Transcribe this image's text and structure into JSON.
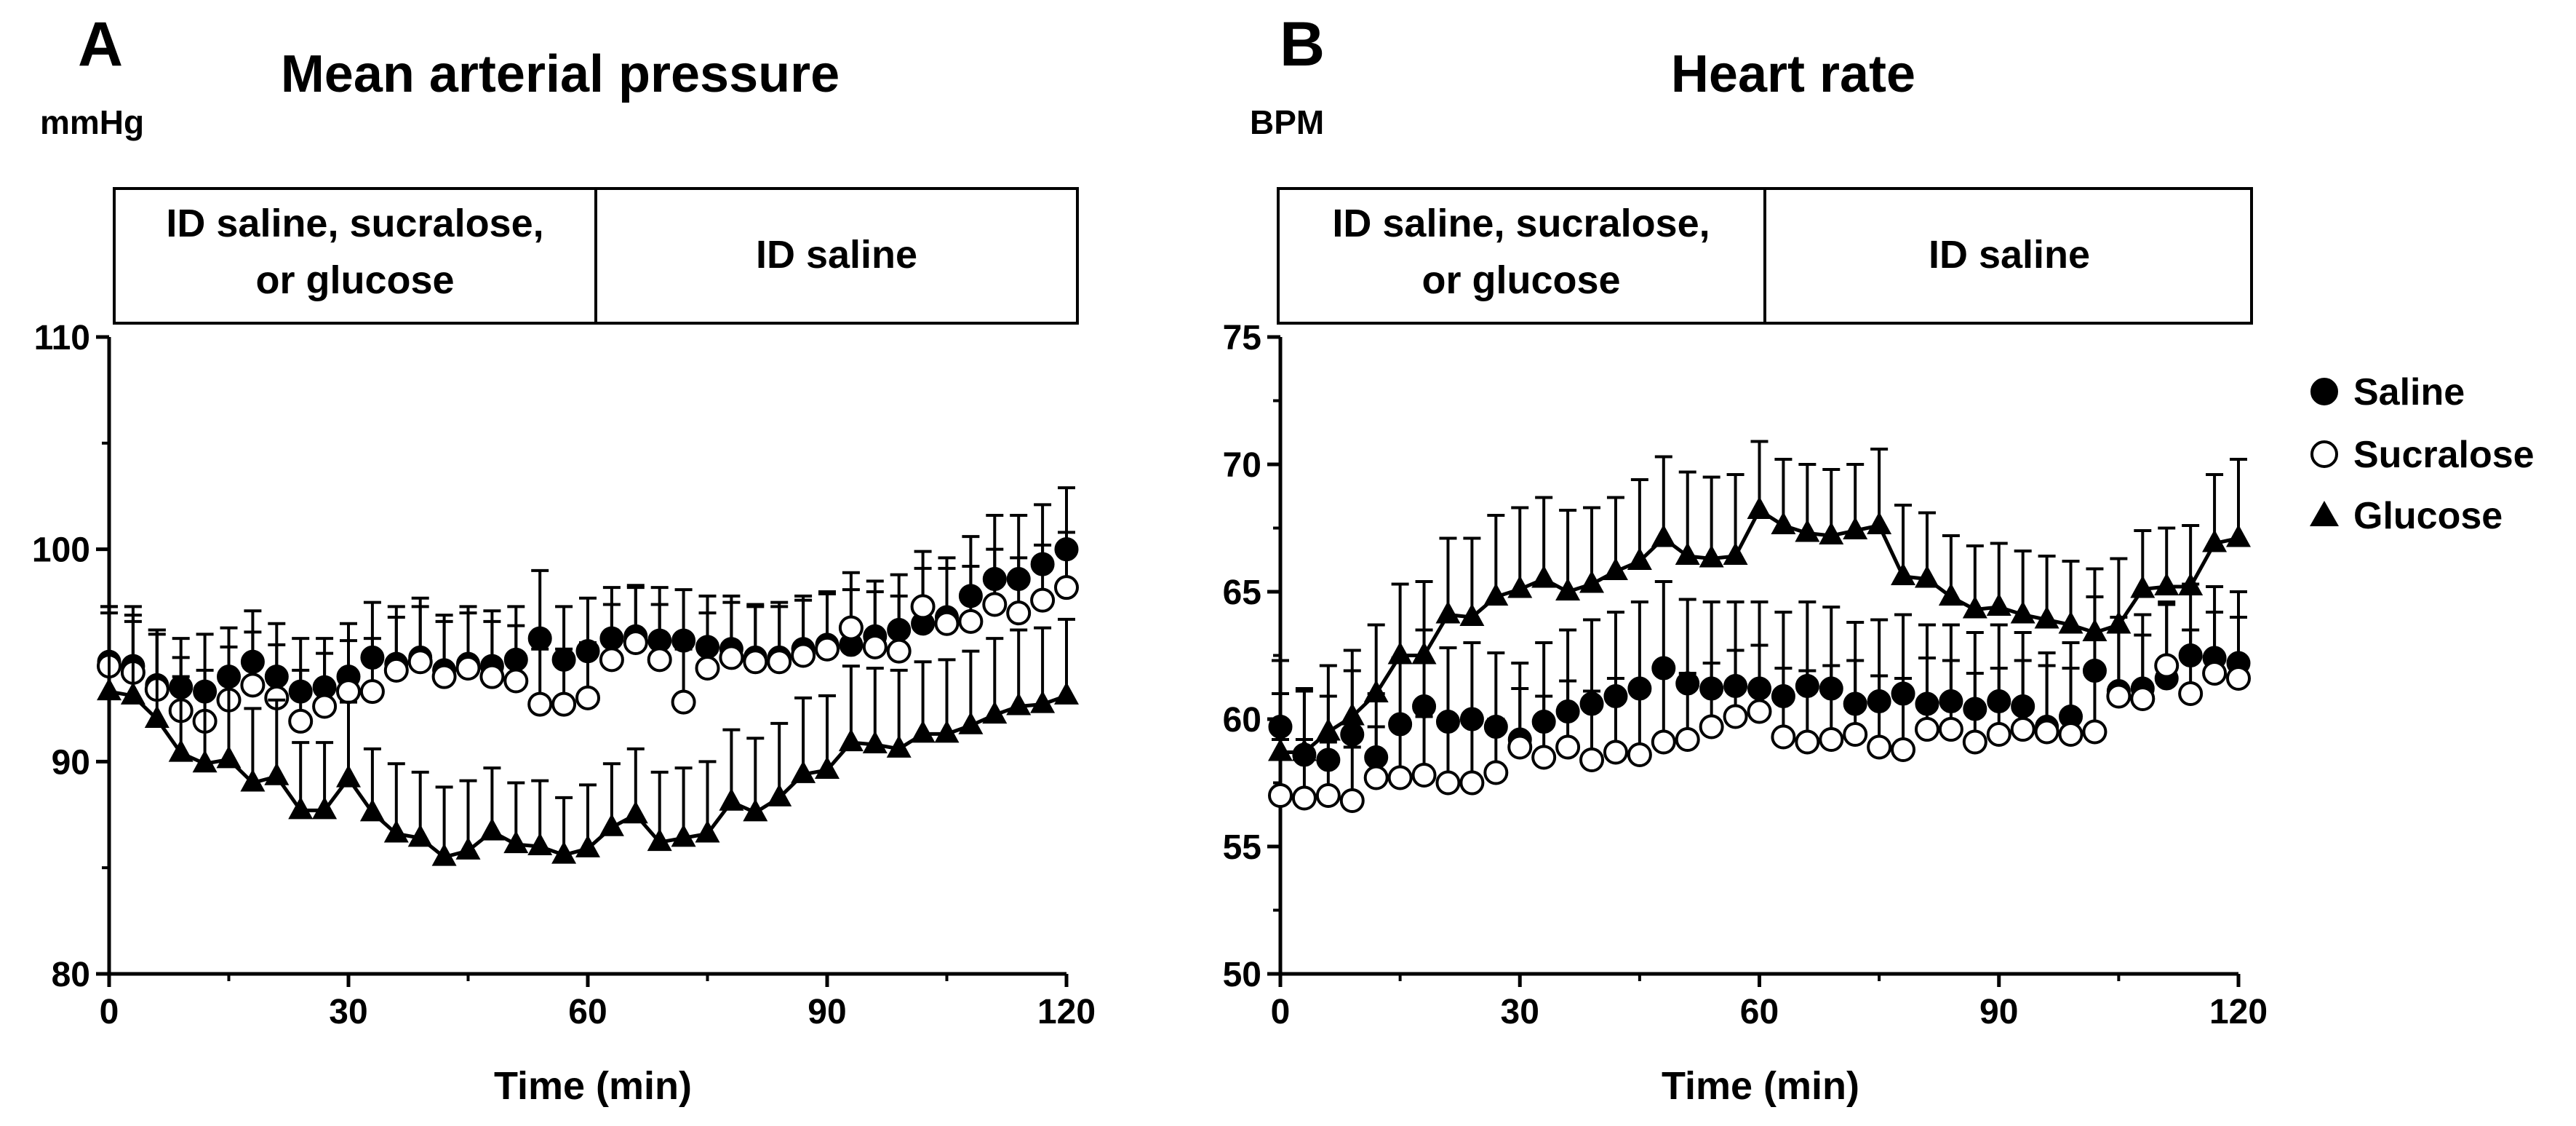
{
  "chart_data": [
    {
      "panel_letter": "A",
      "title": "Mean arterial pressure",
      "type": "line",
      "units": "mmHg",
      "xlabel": "Time (min)",
      "ylabel": "",
      "xlim": [
        0,
        120
      ],
      "ylim": [
        80,
        110
      ],
      "xticks": [
        0,
        30,
        60,
        90,
        120
      ],
      "yticks": [
        80,
        90,
        100,
        110
      ],
      "xtick_labels": [
        "0",
        "30",
        "60",
        "90",
        "120"
      ],
      "ytick_labels": [
        "80",
        "90",
        "100",
        "110"
      ],
      "phases": [
        {
          "label_lines": [
            "ID saline, sucralose,",
            "or glucose"
          ],
          "x_start": 0,
          "x_end": 61
        },
        {
          "label_lines": [
            "ID saline"
          ],
          "x_start": 61,
          "x_end": 122
        }
      ],
      "series": [
        {
          "name": "Saline",
          "marker": "filled-circle",
          "line": false,
          "x": [
            0,
            3,
            6,
            9,
            12,
            15,
            18,
            21,
            24,
            27,
            30,
            33,
            36,
            39,
            42,
            45,
            48,
            51,
            54,
            57,
            60,
            63,
            66,
            69,
            72,
            75,
            78,
            81,
            84,
            87,
            90,
            93,
            96,
            99,
            102,
            105,
            108,
            111,
            114,
            117,
            120
          ],
          "y": [
            94.7,
            94.5,
            93.6,
            93.5,
            93.3,
            94.0,
            94.7,
            94.0,
            93.3,
            93.5,
            94.0,
            94.9,
            94.6,
            94.9,
            94.3,
            94.6,
            94.5,
            94.8,
            95.8,
            94.8,
            95.2,
            95.8,
            95.9,
            95.7,
            95.7,
            95.4,
            95.3,
            94.9,
            94.9,
            95.3,
            95.5,
            95.5,
            95.9,
            96.2,
            96.5,
            96.8,
            97.8,
            98.6,
            98.6,
            99.3,
            100.0
          ],
          "err": [
            2.6,
            2.4,
            2.6,
            2.3,
            2.7,
            2.3,
            2.4,
            2.5,
            2.5,
            2.3,
            2.5,
            2.6,
            2.7,
            2.8,
            2.6,
            2.7,
            2.6,
            2.5,
            3.2,
            2.5,
            2.5,
            2.4,
            2.4,
            2.5,
            2.4,
            2.4,
            2.5,
            2.5,
            2.6,
            2.5,
            2.5,
            2.6,
            2.6,
            2.6,
            2.6,
            2.8,
            2.8,
            3.0,
            3.0,
            2.8,
            2.9
          ]
        },
        {
          "name": "Sucralose",
          "marker": "open-circle",
          "line": false,
          "x": [
            0,
            3,
            6,
            9,
            12,
            15,
            18,
            21,
            24,
            27,
            30,
            33,
            36,
            39,
            42,
            45,
            48,
            51,
            54,
            57,
            60,
            63,
            66,
            69,
            72,
            75,
            78,
            81,
            84,
            87,
            90,
            93,
            96,
            99,
            102,
            105,
            108,
            111,
            114,
            117,
            120
          ],
          "y": [
            94.5,
            94.2,
            93.4,
            92.4,
            91.9,
            92.9,
            93.6,
            93.0,
            91.9,
            92.6,
            93.3,
            93.3,
            94.3,
            94.7,
            94.0,
            94.4,
            94.0,
            93.8,
            92.7,
            92.7,
            93.0,
            94.8,
            95.6,
            94.8,
            92.8,
            94.4,
            94.9,
            94.7,
            94.7,
            95.0,
            95.3,
            96.3,
            95.4,
            95.2,
            97.3,
            96.5,
            96.6,
            97.4,
            97.0,
            97.6,
            98.2
          ],
          "err": [
            2.5,
            2.4,
            2.6,
            2.5,
            2.4,
            2.5,
            2.5,
            2.5,
            2.4,
            2.5,
            2.4,
            2.5,
            2.5,
            2.6,
            2.6,
            2.6,
            2.6,
            2.6,
            2.6,
            2.6,
            2.6,
            2.6,
            2.6,
            2.6,
            2.5,
            2.6,
            2.6,
            2.6,
            2.6,
            2.6,
            2.6,
            2.6,
            2.6,
            2.6,
            2.6,
            2.6,
            2.6,
            2.6,
            2.6,
            2.6,
            2.6
          ]
        },
        {
          "name": "Glucose",
          "marker": "filled-triangle",
          "line": true,
          "x": [
            0,
            3,
            6,
            9,
            12,
            15,
            18,
            21,
            24,
            27,
            30,
            33,
            36,
            39,
            42,
            45,
            48,
            51,
            54,
            57,
            60,
            63,
            66,
            69,
            72,
            75,
            78,
            81,
            84,
            87,
            90,
            93,
            96,
            99,
            102,
            105,
            108,
            111,
            114,
            117,
            120
          ],
          "y": [
            93.3,
            93.1,
            92.0,
            90.4,
            89.9,
            90.1,
            89.0,
            89.3,
            87.7,
            87.7,
            89.2,
            87.6,
            86.6,
            86.4,
            85.5,
            85.8,
            86.7,
            86.1,
            86.0,
            85.6,
            85.9,
            86.9,
            87.5,
            86.2,
            86.4,
            86.6,
            88.1,
            87.6,
            88.3,
            89.4,
            89.6,
            90.9,
            90.8,
            90.6,
            91.3,
            91.3,
            91.7,
            92.2,
            92.6,
            92.7,
            93.1
          ],
          "err": [
            4.0,
            4.2,
            4.2,
            3.6,
            3.4,
            3.8,
            3.5,
            3.6,
            3.2,
            3.2,
            3.6,
            3.0,
            3.3,
            3.1,
            3.3,
            3.3,
            3.0,
            2.9,
            3.1,
            2.7,
            3.0,
            3.0,
            3.1,
            3.3,
            3.3,
            3.4,
            3.4,
            3.5,
            3.5,
            3.6,
            3.5,
            3.6,
            3.6,
            3.7,
            3.4,
            3.5,
            3.5,
            3.6,
            3.6,
            3.6,
            3.6
          ]
        }
      ]
    },
    {
      "panel_letter": "B",
      "title": "Heart rate",
      "type": "line",
      "units": "BPM",
      "xlabel": "Time (min)",
      "ylabel": "",
      "xlim": [
        0,
        120
      ],
      "ylim": [
        50,
        75
      ],
      "xticks": [
        0,
        30,
        60,
        90,
        120
      ],
      "yticks": [
        50,
        55,
        60,
        65,
        70,
        75
      ],
      "xtick_labels": [
        "0",
        "30",
        "60",
        "90",
        "120"
      ],
      "ytick_labels": [
        "50",
        "55",
        "60",
        "65",
        "70",
        "75"
      ],
      "phases": [
        {
          "label_lines": [
            "ID saline, sucralose,",
            "or glucose"
          ],
          "x_start": 0,
          "x_end": 61
        },
        {
          "label_lines": [
            "ID saline"
          ],
          "x_start": 61,
          "x_end": 122
        }
      ],
      "legend": {
        "position": "right",
        "entries": [
          "Saline",
          "Sucralose",
          "Glucose"
        ]
      },
      "series": [
        {
          "name": "Saline",
          "marker": "filled-circle",
          "line": false,
          "x": [
            0,
            3,
            6,
            9,
            12,
            15,
            18,
            21,
            24,
            27,
            30,
            33,
            36,
            39,
            42,
            45,
            48,
            51,
            54,
            57,
            60,
            63,
            66,
            69,
            72,
            75,
            78,
            81,
            84,
            87,
            90,
            93,
            96,
            99,
            102,
            105,
            108,
            111,
            114,
            117,
            120
          ],
          "y": [
            59.7,
            58.6,
            58.4,
            59.4,
            58.5,
            59.8,
            60.5,
            59.9,
            60.0,
            59.7,
            59.2,
            59.9,
            60.3,
            60.6,
            60.9,
            61.2,
            62.0,
            61.4,
            61.2,
            61.3,
            61.2,
            60.9,
            61.3,
            61.2,
            60.6,
            60.7,
            61.0,
            60.6,
            60.7,
            60.4,
            60.7,
            60.5,
            59.7,
            60.1,
            61.9,
            61.1,
            61.2,
            61.6,
            62.5,
            62.4,
            62.2
          ],
          "err": [
            2.6,
            2.5,
            2.5,
            2.5,
            2.5,
            2.6,
            3.0,
            2.9,
            3.0,
            2.9,
            3.0,
            3.1,
            3.2,
            3.3,
            3.3,
            3.4,
            3.4,
            3.3,
            3.4,
            3.3,
            3.4,
            3.3,
            3.3,
            3.2,
            3.2,
            3.2,
            3.1,
            3.1,
            3.0,
            3.0,
            3.0,
            2.9,
            2.9,
            2.9,
            2.9,
            2.9,
            2.9,
            2.9,
            2.8,
            2.8,
            2.8
          ]
        },
        {
          "name": "Sucralose",
          "marker": "open-circle",
          "line": false,
          "x": [
            0,
            3,
            6,
            9,
            12,
            15,
            18,
            21,
            24,
            27,
            30,
            33,
            36,
            39,
            42,
            45,
            48,
            51,
            54,
            57,
            60,
            63,
            66,
            69,
            72,
            75,
            78,
            81,
            84,
            87,
            90,
            93,
            96,
            99,
            102,
            105,
            108,
            111,
            114,
            117,
            120
          ],
          "y": [
            57.0,
            56.9,
            57.0,
            56.8,
            57.7,
            57.7,
            57.8,
            57.5,
            57.5,
            57.9,
            58.9,
            58.5,
            58.9,
            58.4,
            58.7,
            58.6,
            59.1,
            59.2,
            59.7,
            60.1,
            60.3,
            59.3,
            59.1,
            59.2,
            59.4,
            58.9,
            58.8,
            59.6,
            59.6,
            59.1,
            59.4,
            59.6,
            59.5,
            59.4,
            59.5,
            60.9,
            60.8,
            62.1,
            61.0,
            61.8,
            61.6
          ],
          "err": [
            2.2,
            2.3,
            2.1,
            2.1,
            2.0,
            2.1,
            2.3,
            2.2,
            2.3,
            2.1,
            2.3,
            2.4,
            2.6,
            2.7,
            2.9,
            2.7,
            2.7,
            2.6,
            2.5,
            2.6,
            2.6,
            2.7,
            2.8,
            2.9,
            2.9,
            2.8,
            2.8,
            2.8,
            2.7,
            2.7,
            2.6,
            2.7,
            2.6,
            2.6,
            2.6,
            2.6,
            2.5,
            2.5,
            2.5,
            2.4,
            2.4
          ]
        },
        {
          "name": "Glucose",
          "marker": "filled-triangle",
          "line": true,
          "x": [
            0,
            3,
            6,
            9,
            12,
            15,
            18,
            21,
            24,
            27,
            30,
            33,
            36,
            39,
            42,
            45,
            48,
            51,
            54,
            57,
            60,
            63,
            66,
            69,
            72,
            75,
            78,
            81,
            84,
            87,
            90,
            93,
            96,
            99,
            102,
            105,
            108,
            111,
            114,
            117,
            120
          ],
          "y": [
            58.7,
            58.7,
            59.5,
            60.1,
            61.0,
            62.5,
            62.5,
            64.1,
            64.0,
            64.8,
            65.1,
            65.5,
            65.0,
            65.3,
            65.8,
            66.2,
            67.1,
            66.4,
            66.3,
            66.4,
            68.2,
            67.6,
            67.3,
            67.2,
            67.4,
            67.6,
            65.6,
            65.5,
            64.8,
            64.3,
            64.4,
            64.1,
            63.9,
            63.7,
            63.4,
            63.7,
            65.1,
            65.2,
            65.2,
            66.9,
            67.1
          ],
          "err": [
            2.3,
            2.5,
            2.6,
            2.6,
            2.7,
            2.8,
            2.9,
            3.0,
            3.1,
            3.2,
            3.2,
            3.2,
            3.2,
            3.0,
            2.9,
            3.2,
            3.2,
            3.3,
            3.2,
            3.2,
            2.7,
            2.6,
            2.7,
            2.6,
            2.6,
            3.0,
            2.8,
            2.6,
            2.4,
            2.5,
            2.5,
            2.5,
            2.5,
            2.5,
            2.5,
            2.6,
            2.3,
            2.3,
            2.4,
            2.7,
            3.1
          ]
        }
      ]
    }
  ]
}
